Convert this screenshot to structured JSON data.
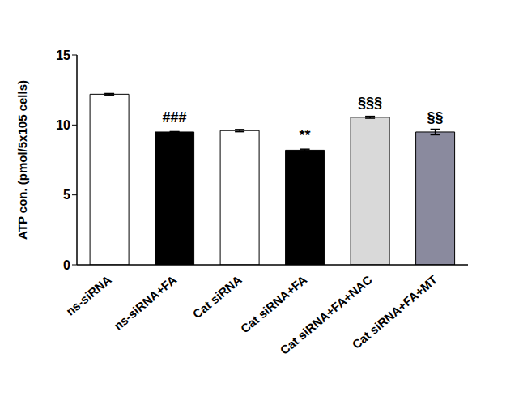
{
  "chart_data": {
    "type": "bar",
    "y_label": "ATP con. (pmol/5x105 cells)",
    "categories": [
      "ns-siRNA",
      "ns-siRNA+FA",
      "Cat siRNA",
      "Cat siRNA+FA",
      "Cat siRNA+FA+NAC",
      "Cat siRNA+FA+MT"
    ],
    "values": [
      12.2,
      9.5,
      9.6,
      8.2,
      10.55,
      9.5
    ],
    "errors": [
      0.05,
      0.03,
      0.08,
      0.07,
      0.07,
      0.2
    ],
    "annotations": [
      null,
      "###",
      null,
      "**",
      "§§§",
      "§§"
    ],
    "colors": [
      "#ffffff",
      "#000000",
      "#ffffff",
      "#000000",
      "#d9d9d9",
      "#8a8a9e"
    ],
    "ylim": [
      0,
      15
    ],
    "yticks": [
      0,
      5,
      10,
      15
    ],
    "grid": false
  }
}
